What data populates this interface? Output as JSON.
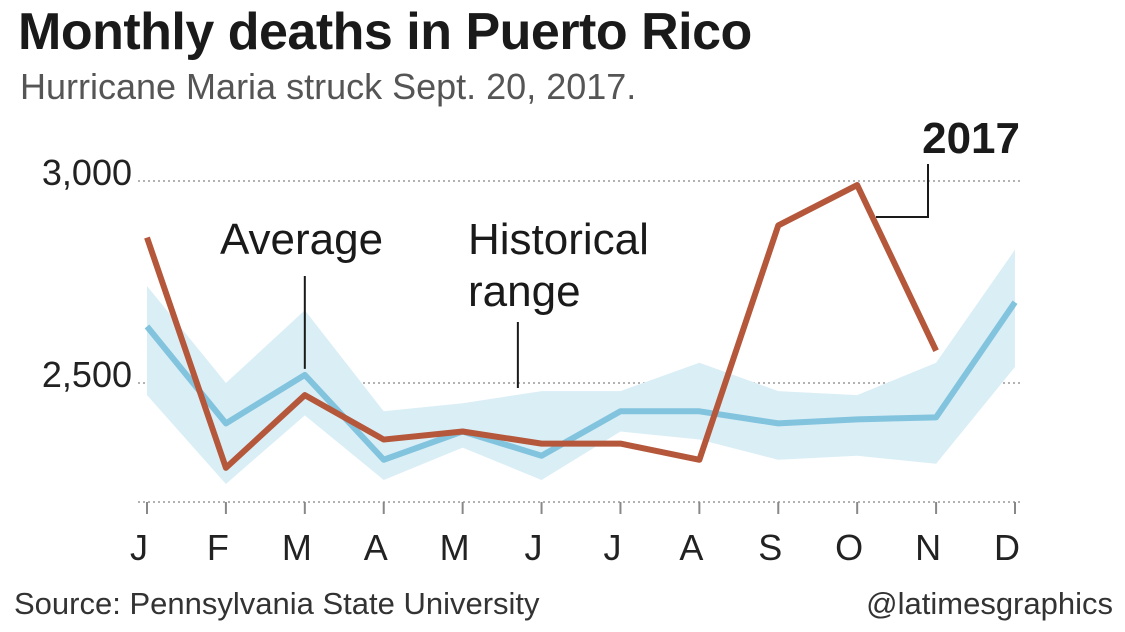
{
  "header": {
    "title": "Monthly deaths in Puerto Rico",
    "subtitle": "Hurricane Maria struck Sept. 20, 2017."
  },
  "footer": {
    "source": "Source: Pennsylvania State University",
    "credit": "@latimesgraphics"
  },
  "colors": {
    "series_2017": "#b5573a",
    "average": "#82c3dd",
    "range_fill": "#daeef6",
    "gridline": "#999999",
    "text": "#1a1a1a"
  },
  "chart_data": {
    "type": "line",
    "title": "Monthly deaths in Puerto Rico",
    "subtitle": "Hurricane Maria struck Sept. 20, 2017.",
    "categories": [
      "J",
      "F",
      "M",
      "A",
      "M",
      "J",
      "J",
      "A",
      "S",
      "O",
      "N",
      "D"
    ],
    "yticks": [
      2500,
      3000
    ],
    "ytick_labels": [
      "2,500",
      "3,000"
    ],
    "ylim": [
      2210,
      3060
    ],
    "grid": true,
    "series": [
      {
        "name": "2017",
        "values": [
          2860,
          2290,
          2470,
          2360,
          2380,
          2350,
          2350,
          2310,
          2890,
          2990,
          2580,
          null
        ]
      },
      {
        "name": "Average",
        "values": [
          2640,
          2400,
          2520,
          2310,
          2380,
          2320,
          2430,
          2430,
          2400,
          2410,
          2415,
          2700
        ]
      }
    ],
    "range": {
      "name": "Historical range",
      "low": [
        2470,
        2250,
        2420,
        2260,
        2340,
        2260,
        2380,
        2360,
        2310,
        2320,
        2300,
        2540
      ],
      "high": [
        2740,
        2500,
        2680,
        2430,
        2450,
        2480,
        2480,
        2550,
        2480,
        2470,
        2550,
        2830
      ]
    },
    "annotations": [
      {
        "text": "Average",
        "target": "average",
        "category_index": 2
      },
      {
        "text_lines": [
          "Historical",
          "range"
        ],
        "target": "range",
        "category_index": 4.7
      },
      {
        "text": "2017",
        "target": "2017",
        "category_index": 9.2
      }
    ]
  }
}
